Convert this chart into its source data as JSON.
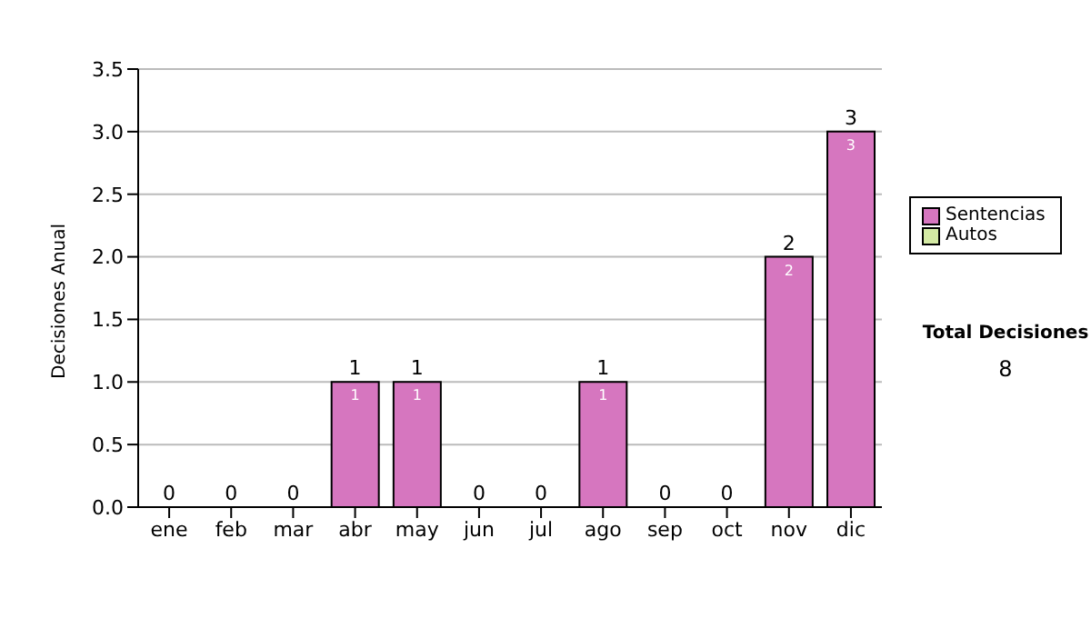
{
  "chart_data": {
    "type": "bar",
    "ylabel": "Decisiones Anual",
    "categories": [
      "ene",
      "feb",
      "mar",
      "abr",
      "may",
      "jun",
      "jul",
      "ago",
      "sep",
      "oct",
      "nov",
      "dic"
    ],
    "series": [
      {
        "name": "Sentencias",
        "color": "#d676bf",
        "values": [
          0,
          0,
          0,
          1,
          1,
          0,
          0,
          1,
          0,
          0,
          2,
          3
        ],
        "value_labels": [
          null,
          null,
          null,
          "1",
          "1",
          null,
          null,
          "1",
          null,
          null,
          "2",
          "3"
        ]
      },
      {
        "name": "Autos",
        "color": "#d4eaa4",
        "values": [
          0,
          0,
          0,
          0,
          0,
          0,
          0,
          0,
          0,
          0,
          0,
          0
        ]
      }
    ],
    "stacked": true,
    "totals": [
      "0",
      "0",
      "0",
      "1",
      "1",
      "0",
      "0",
      "1",
      "0",
      "0",
      "2",
      "3"
    ],
    "ylim": [
      0,
      3.5
    ],
    "yticks": [
      {
        "value": 0,
        "label": "0.0"
      },
      {
        "value": 0.5,
        "label": "0.5"
      },
      {
        "value": 1,
        "label": "1.0"
      },
      {
        "value": 1.5,
        "label": "1.5"
      },
      {
        "value": 2,
        "label": "2.0"
      },
      {
        "value": 2.5,
        "label": "2.5"
      },
      {
        "value": 3,
        "label": "3.0"
      },
      {
        "value": 3.5,
        "label": "3.5"
      }
    ],
    "grid": "y",
    "legend": "right",
    "annotations": [
      "Total Decisiones",
      "8"
    ]
  }
}
